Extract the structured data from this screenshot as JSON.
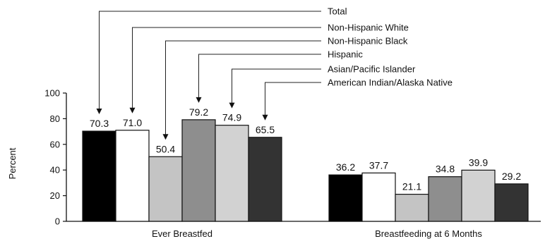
{
  "chart_data": {
    "type": "bar",
    "title": "",
    "xlabel": "",
    "ylabel": "Percent",
    "ylim": [
      0,
      100
    ],
    "yticks": [
      0,
      20,
      40,
      60,
      80,
      100
    ],
    "legend_position": "top-right",
    "grid": false,
    "categories": [
      "Ever Breastfed",
      "Breastfeeding at 6 Months"
    ],
    "series": [
      {
        "name": "Total",
        "values": [
          70.3,
          36.2
        ],
        "value_labels": [
          "70.3",
          "36.2"
        ],
        "color": "#000000"
      },
      {
        "name": "Non-Hispanic White",
        "values": [
          71.0,
          37.7
        ],
        "value_labels": [
          "71.0",
          "37.7"
        ],
        "color": "#ffffff"
      },
      {
        "name": "Non-Hispanic Black",
        "values": [
          50.4,
          21.1
        ],
        "value_labels": [
          "50.4",
          "21.1"
        ],
        "color": "#c4c4c4"
      },
      {
        "name": "Hispanic",
        "values": [
          79.2,
          34.8
        ],
        "value_labels": [
          "79.2",
          "34.8"
        ],
        "color": "#8e8e8e"
      },
      {
        "name": "Asian/Pacific Islander",
        "values": [
          74.9,
          39.9
        ],
        "value_labels": [
          "74.9",
          "39.9"
        ],
        "color": "#d2d2d2"
      },
      {
        "name": "American Indian/Alaska Native",
        "values": [
          65.5,
          29.2
        ],
        "value_labels": [
          "65.5",
          "29.2"
        ],
        "color": "#333333"
      }
    ]
  }
}
